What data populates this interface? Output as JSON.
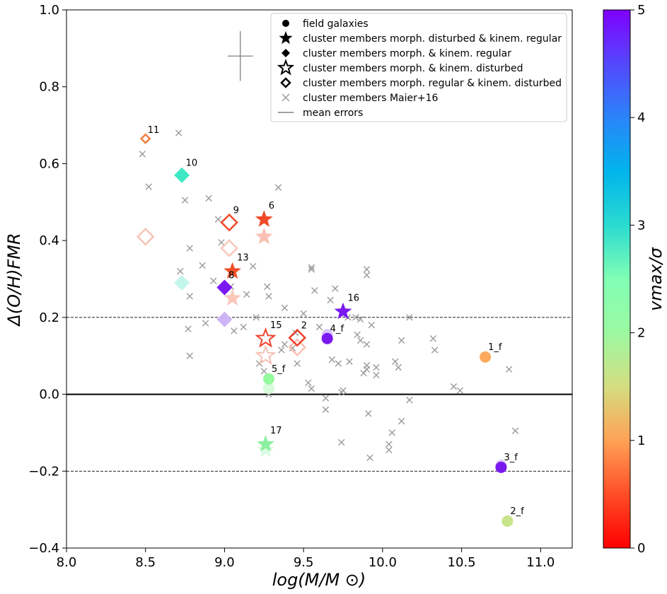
{
  "chart_data": {
    "type": "scatter",
    "xlabel": "log(M/M ⊙)",
    "ylabel": "Δ(O/H)FMR",
    "xlim": [
      8.0,
      11.2
    ],
    "ylim": [
      -0.4,
      1.0
    ],
    "x_ticks": [
      "8.0",
      "8.5",
      "9.0",
      "9.5",
      "10.0",
      "10.5",
      "11.0"
    ],
    "y_ticks": [
      "−0.4",
      "−0.2",
      "0.0",
      "0.2",
      "0.4",
      "0.6",
      "0.8",
      "1.0"
    ],
    "reference_lines": [
      {
        "y": 0.0,
        "style": "solid"
      },
      {
        "y": 0.2,
        "style": "dashed"
      },
      {
        "y": -0.2,
        "style": "dashed"
      }
    ],
    "colorbar": {
      "label": "vmax/σ",
      "range": [
        0,
        5
      ],
      "ticks": [
        "0",
        "1",
        "2",
        "3",
        "4",
        "5"
      ]
    },
    "mean_error": {
      "x": 9.1,
      "y": 0.88,
      "xerr": 0.08,
      "yerr": 0.065
    },
    "legend": [
      {
        "marker": "circle-filled",
        "label": "field galaxies"
      },
      {
        "marker": "star-filled",
        "label": "cluster members morph. disturbed & kinem. regular"
      },
      {
        "marker": "diamond-filled",
        "label": "cluster members morph. & kinem. regular"
      },
      {
        "marker": "star-open",
        "label": "cluster members morph. & kinem. disturbed"
      },
      {
        "marker": "diamond-open",
        "label": "cluster members morph. regular & kinem. disturbed"
      },
      {
        "marker": "x",
        "label": "cluster members Maier+16"
      },
      {
        "marker": "line",
        "label": "mean errors"
      }
    ],
    "labeled_points": [
      {
        "label": "11",
        "x": 8.5,
        "y": 0.665,
        "vmax_sigma": 0.8,
        "marker": "diamond-open",
        "size": "small",
        "color": "#f07d44"
      },
      {
        "label": "10",
        "x": 8.73,
        "y": 0.57,
        "vmax_sigma": 3.1,
        "marker": "diamond-filled",
        "size": "large",
        "color": "#3ee8c4"
      },
      {
        "label": "9",
        "x": 9.03,
        "y": 0.447,
        "vmax_sigma": 0.3,
        "marker": "diamond-open",
        "size": "large",
        "color": "#f0472a"
      },
      {
        "label": "6",
        "x": 9.25,
        "y": 0.455,
        "vmax_sigma": 0.3,
        "marker": "star-filled",
        "size": "large",
        "color": "#f04a2a"
      },
      {
        "label": "13",
        "x": 9.05,
        "y": 0.32,
        "vmax_sigma": 0.3,
        "marker": "star-filled",
        "size": "large",
        "color": "#f0502a"
      },
      {
        "label": "8",
        "x": 9.0,
        "y": 0.278,
        "vmax_sigma": 4.9,
        "marker": "diamond-filled",
        "size": "large",
        "color": "#7a18f0"
      },
      {
        "label": "16",
        "x": 9.75,
        "y": 0.215,
        "vmax_sigma": 4.9,
        "marker": "star-filled",
        "size": "large",
        "color": "#7a18f0"
      },
      {
        "label": "15",
        "x": 9.26,
        "y": 0.145,
        "vmax_sigma": 0.3,
        "marker": "star-open",
        "size": "large",
        "color": "#f0402a"
      },
      {
        "label": "2",
        "x": 9.46,
        "y": 0.147,
        "vmax_sigma": 0.3,
        "marker": "diamond-open",
        "size": "large",
        "color": "#f0402a"
      },
      {
        "label": "4_f",
        "x": 9.65,
        "y": 0.145,
        "vmax_sigma": 4.9,
        "marker": "circle-filled",
        "size": "medium",
        "color": "#7a18f0"
      },
      {
        "label": "1_f",
        "x": 10.65,
        "y": 0.097,
        "vmax_sigma": 1.1,
        "marker": "circle-filled",
        "size": "medium",
        "color": "#fcab5e"
      },
      {
        "label": "5_f",
        "x": 9.28,
        "y": 0.04,
        "vmax_sigma": 2.5,
        "marker": "circle-filled",
        "size": "medium",
        "color": "#96fa9e"
      },
      {
        "label": "17",
        "x": 9.26,
        "y": -0.13,
        "vmax_sigma": 2.5,
        "marker": "star-filled",
        "size": "large",
        "color": "#8cf0a0"
      },
      {
        "label": "3_f",
        "x": 10.75,
        "y": -0.19,
        "vmax_sigma": 4.9,
        "marker": "circle-filled",
        "size": "medium",
        "color": "#7a18f0"
      },
      {
        "label": "2_f",
        "x": 10.79,
        "y": -0.33,
        "vmax_sigma": 1.9,
        "marker": "circle-filled",
        "size": "medium",
        "color": "#c8e48a"
      }
    ],
    "shadow_points": [
      {
        "x": 8.5,
        "y": 0.41,
        "marker": "diamond-open",
        "color": "#f7c4b5"
      },
      {
        "x": 8.73,
        "y": 0.29,
        "marker": "diamond-filled",
        "color": "#c4f7ec"
      },
      {
        "x": 9.03,
        "y": 0.38,
        "marker": "diamond-open",
        "color": "#f9c8bb"
      },
      {
        "x": 9.25,
        "y": 0.41,
        "marker": "star-filled",
        "color": "#f9c0b3"
      },
      {
        "x": 9.05,
        "y": 0.25,
        "marker": "star-filled",
        "color": "#f9c8bb"
      },
      {
        "x": 9.0,
        "y": 0.195,
        "marker": "diamond-filled",
        "color": "#cfb4f5"
      },
      {
        "x": 9.26,
        "y": 0.1,
        "marker": "star-open",
        "color": "#f9c0b3"
      },
      {
        "x": 9.46,
        "y": 0.122,
        "marker": "diamond-open",
        "color": "#f9c0b3"
      },
      {
        "x": 9.65,
        "y": 0.155,
        "marker": "circle-filled",
        "color": "#d6c4f8"
      },
      {
        "x": 9.28,
        "y": 0.015,
        "marker": "circle-filled",
        "color": "#d6fbda"
      },
      {
        "x": 9.26,
        "y": -0.145,
        "marker": "star-filled",
        "color": "#dafbe2"
      },
      {
        "x": 10.75,
        "y": -0.185,
        "marker": "circle-filled",
        "color": "#d6c4f8"
      }
    ],
    "maier16_points": [
      [
        8.48,
        0.625
      ],
      [
        8.71,
        0.68
      ],
      [
        8.52,
        0.54
      ],
      [
        8.75,
        0.505
      ],
      [
        8.9,
        0.51
      ],
      [
        8.96,
        0.455
      ],
      [
        9.34,
        0.538
      ],
      [
        8.78,
        0.38
      ],
      [
        8.98,
        0.395
      ],
      [
        8.86,
        0.335
      ],
      [
        9.18,
        0.333
      ],
      [
        8.72,
        0.32
      ],
      [
        8.93,
        0.295
      ],
      [
        8.78,
        0.255
      ],
      [
        9.14,
        0.26
      ],
      [
        9.27,
        0.28
      ],
      [
        9.28,
        0.255
      ],
      [
        9.5,
        0.21
      ],
      [
        9.38,
        0.225
      ],
      [
        9.55,
        0.33
      ],
      [
        9.55,
        0.325
      ],
      [
        9.57,
        0.27
      ],
      [
        9.67,
        0.245
      ],
      [
        9.7,
        0.275
      ],
      [
        9.78,
        0.2
      ],
      [
        9.83,
        0.2
      ],
      [
        9.86,
        0.195
      ],
      [
        9.9,
        0.31
      ],
      [
        9.9,
        0.325
      ],
      [
        9.93,
        0.18
      ],
      [
        8.88,
        0.185
      ],
      [
        8.77,
        0.17
      ],
      [
        9.06,
        0.165
      ],
      [
        9.12,
        0.175
      ],
      [
        9.2,
        0.2
      ],
      [
        9.45,
        0.16
      ],
      [
        9.6,
        0.175
      ],
      [
        9.65,
        0.16
      ],
      [
        9.84,
        0.155
      ],
      [
        9.86,
        0.14
      ],
      [
        9.9,
        0.13
      ],
      [
        9.43,
        0.12
      ],
      [
        9.36,
        0.115
      ],
      [
        9.38,
        0.13
      ],
      [
        9.68,
        0.09
      ],
      [
        9.72,
        0.08
      ],
      [
        9.79,
        0.085
      ],
      [
        9.88,
        0.055
      ],
      [
        9.9,
        0.075
      ],
      [
        9.9,
        0.065
      ],
      [
        9.96,
        0.07
      ],
      [
        9.96,
        0.05
      ],
      [
        10.08,
        0.085
      ],
      [
        10.1,
        0.07
      ],
      [
        10.12,
        0.14
      ],
      [
        10.17,
        0.2
      ],
      [
        10.32,
        0.145
      ],
      [
        10.33,
        0.115
      ],
      [
        10.8,
        0.065
      ],
      [
        9.46,
        0.08
      ],
      [
        9.53,
        0.03
      ],
      [
        9.55,
        0.015
      ],
      [
        9.64,
        -0.01
      ],
      [
        9.64,
        -0.04
      ],
      [
        9.74,
        0.005
      ],
      [
        9.75,
        0.01
      ],
      [
        9.91,
        -0.05
      ],
      [
        10.04,
        -0.13
      ],
      [
        10.04,
        -0.145
      ],
      [
        10.06,
        -0.1
      ],
      [
        10.12,
        -0.07
      ],
      [
        10.17,
        -0.015
      ],
      [
        9.74,
        -0.125
      ],
      [
        9.92,
        -0.165
      ],
      [
        10.45,
        0.02
      ],
      [
        10.49,
        0.01
      ],
      [
        10.84,
        -0.095
      ],
      [
        8.78,
        0.1
      ],
      [
        9.25,
        0.06
      ],
      [
        9.28,
        0.03
      ],
      [
        9.28,
        0.0
      ],
      [
        9.22,
        0.08
      ],
      [
        9.04,
        0.28
      ]
    ]
  }
}
